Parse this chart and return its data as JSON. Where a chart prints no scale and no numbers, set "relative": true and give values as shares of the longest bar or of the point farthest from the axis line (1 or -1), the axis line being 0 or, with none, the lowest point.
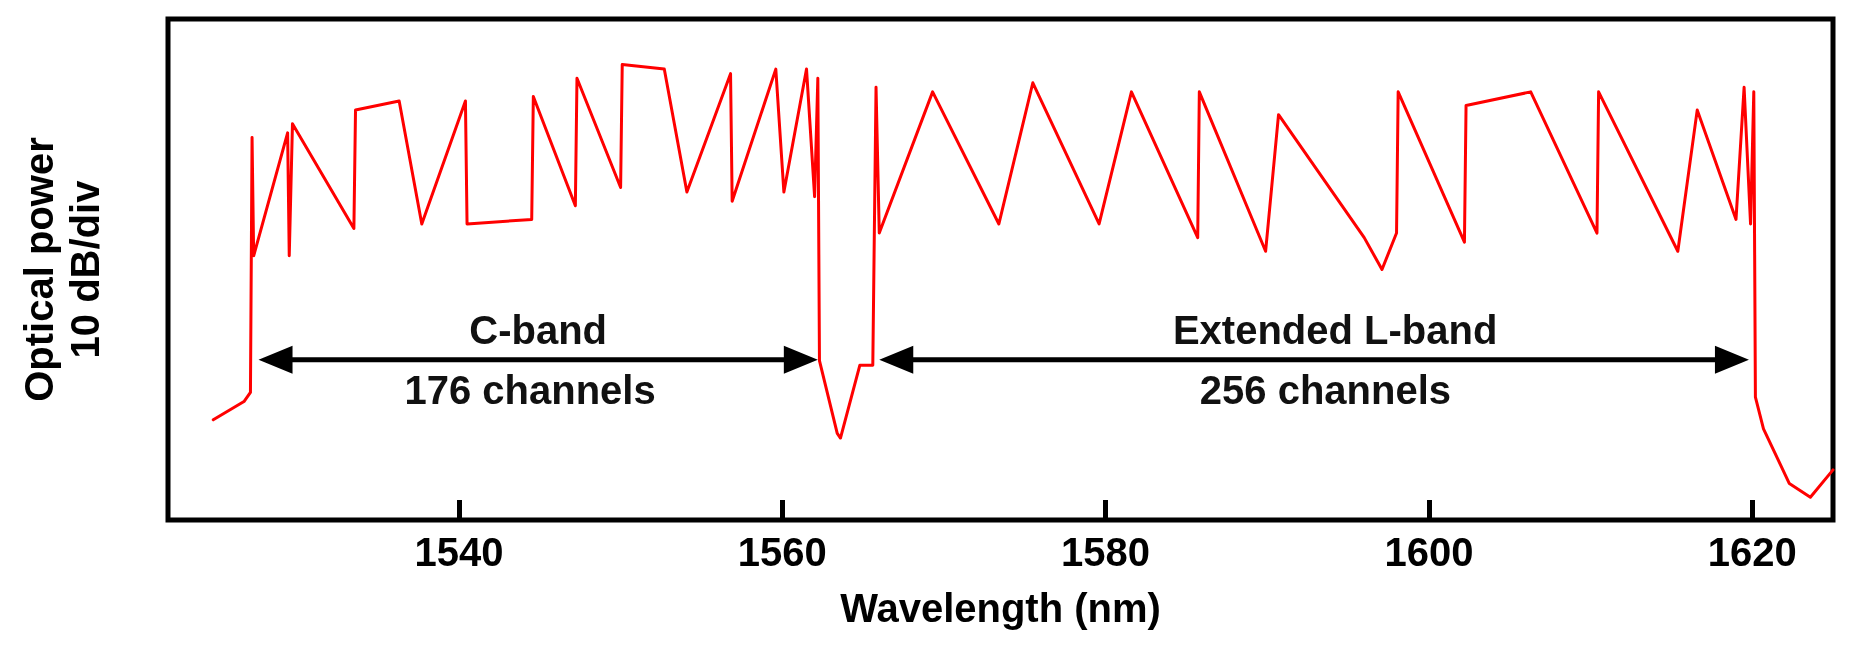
{
  "chart_data": {
    "type": "line",
    "relative": true,
    "xlabel": "Wavelength (nm)",
    "ylabel": "Optical power\n10 dB/div",
    "xlim": [
      1522,
      1625
    ],
    "xticks": [
      1540,
      1560,
      1580,
      1600,
      1620
    ],
    "grid": false,
    "marker": "none",
    "line_style": "solid",
    "series": [
      {
        "color": "#ff0000",
        "x": [
          1524.8,
          1526.7,
          1527.1,
          1527.2,
          1527.3,
          1529.4,
          1529.5,
          1529.7,
          1533.5,
          1533.6,
          1536.3,
          1537.7,
          1540.4,
          1540.5,
          1544.5,
          1544.6,
          1547.2,
          1547.3,
          1550.0,
          1550.1,
          1552.7,
          1554.1,
          1556.8,
          1556.9,
          1559.6,
          1560.1,
          1561.5,
          1562.0,
          1562.2,
          1562.3,
          1563.4,
          1563.6,
          1564.8,
          1565.6,
          1565.8,
          1566.0,
          1569.3,
          1573.4,
          1575.5,
          1579.6,
          1581.6,
          1585.7,
          1585.8,
          1589.9,
          1590.7,
          1596.0,
          1597.1,
          1598.0,
          1598.1,
          1602.2,
          1602.3,
          1606.3,
          1610.4,
          1610.5,
          1615.4,
          1616.6,
          1619.0,
          1619.5,
          1619.9,
          1620.1,
          1620.2,
          1620.7,
          1622.3,
          1623.6,
          1625.0
        ],
        "values": [
          0.22,
          0.26,
          0.28,
          0.84,
          0.58,
          0.85,
          0.58,
          0.87,
          0.64,
          0.9,
          0.92,
          0.65,
          0.92,
          0.65,
          0.66,
          0.93,
          0.69,
          0.97,
          0.73,
          1.0,
          0.99,
          0.72,
          0.98,
          0.7,
          0.99,
          0.72,
          0.99,
          0.71,
          0.97,
          0.35,
          0.19,
          0.18,
          0.34,
          0.34,
          0.95,
          0.63,
          0.94,
          0.65,
          0.96,
          0.65,
          0.94,
          0.62,
          0.94,
          0.59,
          0.89,
          0.62,
          0.55,
          0.63,
          0.94,
          0.61,
          0.91,
          0.94,
          0.63,
          0.94,
          0.59,
          0.9,
          0.66,
          0.95,
          0.65,
          0.94,
          0.27,
          0.2,
          0.08,
          0.05,
          0.11
        ]
      }
    ],
    "annotations": [
      "C-band",
      "176 channels",
      "Extended L-band",
      "256 channels"
    ]
  }
}
